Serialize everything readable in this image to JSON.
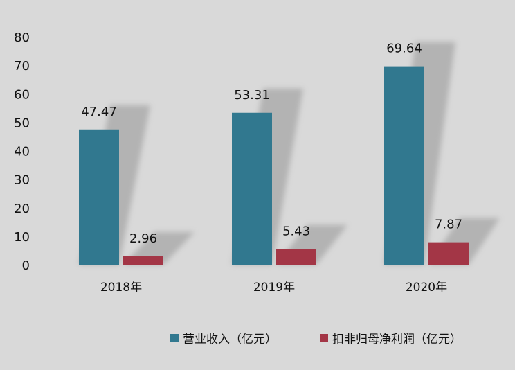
{
  "chart_data": {
    "type": "bar",
    "title": "",
    "xlabel": "",
    "ylabel": "",
    "categories": [
      "2018年",
      "2019年",
      "2020年"
    ],
    "series": [
      {
        "name": "营业收入（亿元）",
        "color": "#31788f",
        "values": [
          47.47,
          53.31,
          69.64
        ],
        "labels": [
          "47.47",
          "53.31",
          "69.64"
        ]
      },
      {
        "name": "扣非归母净利润（亿元）",
        "color": "#a33646",
        "values": [
          2.96,
          5.43,
          7.87
        ],
        "labels": [
          "2.96",
          "5.43",
          "7.87"
        ]
      }
    ],
    "ylim": [
      0,
      80
    ],
    "yticks": [
      "0",
      "10",
      "20",
      "30",
      "40",
      "50",
      "60",
      "70",
      "80"
    ],
    "grid": false,
    "legend_position": "bottom-right"
  }
}
